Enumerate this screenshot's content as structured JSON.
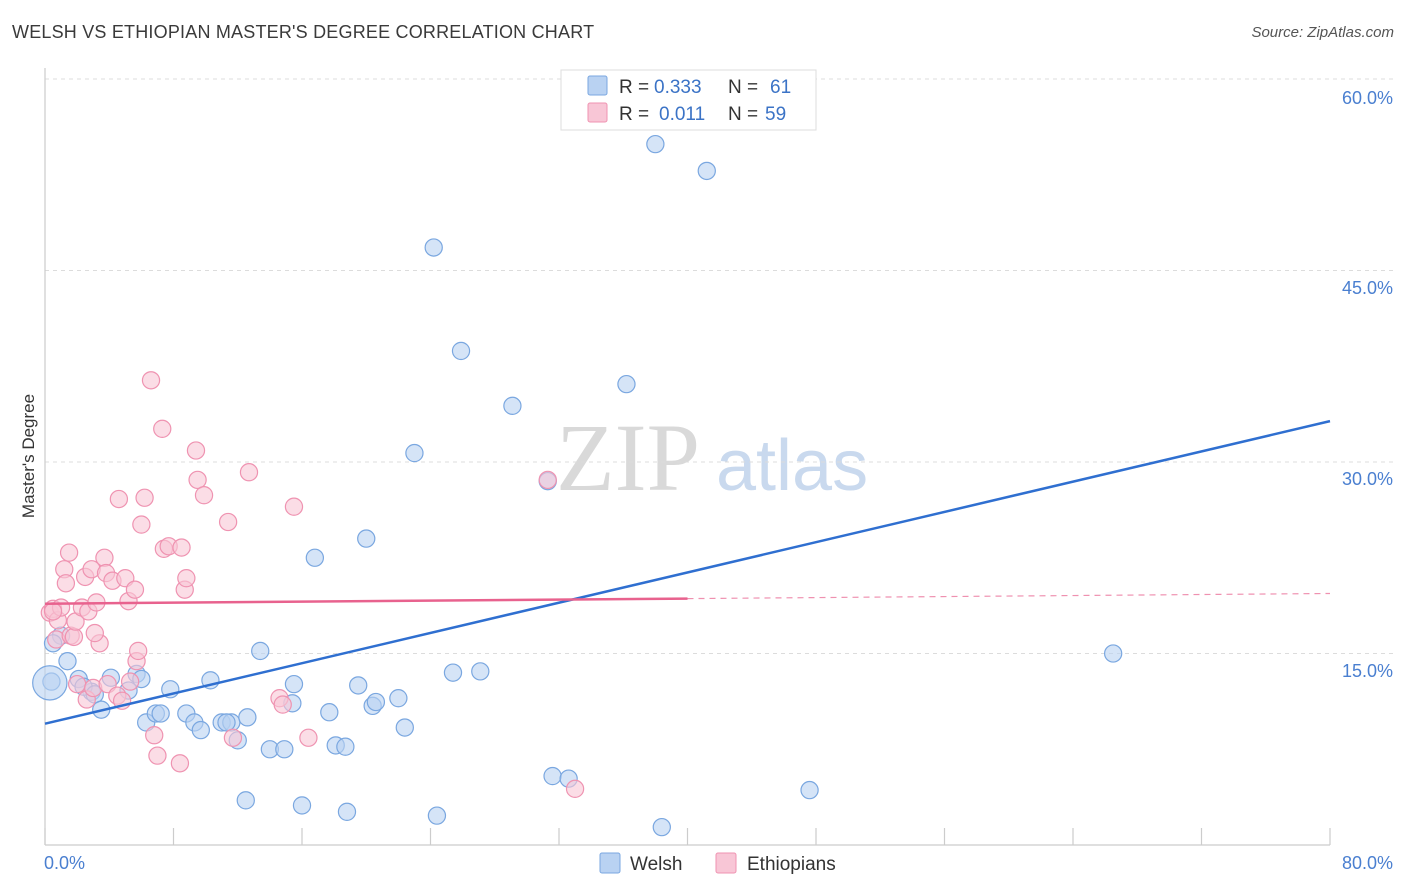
{
  "chart_data": {
    "type": "scatter",
    "title": "WELSH VS ETHIOPIAN MASTER'S DEGREE CORRELATION CHART",
    "source": "Source: ZipAtlas.com",
    "xlabel": "",
    "ylabel": "Master's Degree",
    "xlim": [
      0,
      80
    ],
    "ylim": [
      0,
      60
    ],
    "x_tick_labels": [
      "0.0%",
      "80.0%"
    ],
    "y_ticks": [
      15,
      30,
      45,
      60
    ],
    "y_tick_labels": [
      "15.0%",
      "30.0%",
      "45.0%",
      "60.0%"
    ],
    "watermark": {
      "zip": "ZIP",
      "atlas": "atlas"
    },
    "legend": {
      "r_label": "R =",
      "n_label": "N =",
      "entries": [
        {
          "name": "Welsh",
          "r": "0.333",
          "n": "61",
          "color": "#7baee8"
        },
        {
          "name": "Ethiopians",
          "r": "0.011",
          "n": "59",
          "color": "#f3a0ba"
        }
      ]
    },
    "series": [
      {
        "name": "Welsh",
        "fill": "#b9d2f2",
        "stroke": "#7aa7e0",
        "trend": {
          "x": [
            0,
            80
          ],
          "y": [
            9.5,
            33.2
          ],
          "color": "#2f6fd0"
        },
        "points": [
          [
            0.4,
            12.8
          ],
          [
            1.0,
            16.4
          ],
          [
            0.5,
            15.8
          ],
          [
            1.4,
            14.4
          ],
          [
            2.1,
            13.0
          ],
          [
            2.9,
            12.0
          ],
          [
            2.4,
            12.4
          ],
          [
            3.1,
            11.8
          ],
          [
            3.5,
            10.6
          ],
          [
            4.1,
            13.1
          ],
          [
            5.2,
            12.1
          ],
          [
            5.7,
            13.4
          ],
          [
            6.3,
            9.6
          ],
          [
            6.9,
            10.3
          ],
          [
            7.2,
            10.3
          ],
          [
            7.8,
            12.2
          ],
          [
            8.8,
            10.3
          ],
          [
            9.3,
            9.6
          ],
          [
            9.7,
            9.0
          ],
          [
            10.3,
            12.9
          ],
          [
            11.0,
            9.6
          ],
          [
            11.6,
            9.6
          ],
          [
            12.0,
            8.2
          ],
          [
            12.6,
            10.0
          ],
          [
            13.4,
            15.2
          ],
          [
            14.0,
            7.5
          ],
          [
            14.9,
            7.5
          ],
          [
            15.4,
            11.1
          ],
          [
            15.5,
            12.6
          ],
          [
            16.0,
            3.1
          ],
          [
            16.8,
            22.5
          ],
          [
            17.7,
            10.4
          ],
          [
            18.1,
            7.8
          ],
          [
            18.7,
            7.7
          ],
          [
            18.8,
            2.6
          ],
          [
            19.5,
            12.5
          ],
          [
            20.0,
            24.0
          ],
          [
            20.4,
            10.9
          ],
          [
            20.6,
            11.2
          ],
          [
            22.0,
            11.5
          ],
          [
            22.4,
            9.2
          ],
          [
            23.0,
            30.7
          ],
          [
            24.2,
            46.8
          ],
          [
            24.4,
            2.3
          ],
          [
            25.4,
            13.5
          ],
          [
            25.9,
            38.7
          ],
          [
            27.1,
            13.6
          ],
          [
            29.1,
            34.4
          ],
          [
            31.3,
            28.5
          ],
          [
            31.6,
            5.4
          ],
          [
            32.6,
            5.2
          ],
          [
            36.2,
            36.1
          ],
          [
            38.0,
            54.9
          ],
          [
            38.4,
            1.4
          ],
          [
            41.2,
            52.8
          ],
          [
            47.6,
            4.3
          ],
          [
            66.5,
            15.0
          ],
          [
            0.3,
            12.7
          ],
          [
            12.5,
            3.5
          ],
          [
            6.0,
            13.0
          ],
          [
            11.3,
            9.6
          ]
        ],
        "sizes": [
          12,
          12,
          12,
          12,
          12,
          12,
          12,
          12,
          12,
          12,
          12,
          12,
          12,
          12,
          12,
          12,
          12,
          12,
          12,
          12,
          12,
          12,
          12,
          12,
          12,
          12,
          12,
          12,
          12,
          12,
          12,
          12,
          12,
          12,
          12,
          12,
          12,
          12,
          12,
          12,
          12,
          12,
          12,
          12,
          12,
          12,
          12,
          12,
          12,
          12,
          12,
          12,
          12,
          12,
          12,
          12,
          12,
          24,
          12,
          12,
          12
        ]
      },
      {
        "name": "Ethiopians",
        "fill": "#f8c6d6",
        "stroke": "#ef93b1",
        "trend": {
          "x": [
            0,
            40
          ],
          "y": [
            18.9,
            19.3
          ],
          "x_dash": [
            40,
            80
          ],
          "y_dash": [
            19.3,
            19.7
          ],
          "color": "#e8628e"
        },
        "points": [
          [
            0.3,
            18.2
          ],
          [
            0.5,
            18.5
          ],
          [
            0.7,
            16.1
          ],
          [
            0.8,
            17.6
          ],
          [
            1.0,
            18.6
          ],
          [
            1.2,
            21.6
          ],
          [
            1.3,
            20.5
          ],
          [
            1.5,
            22.9
          ],
          [
            1.6,
            16.4
          ],
          [
            1.8,
            16.3
          ],
          [
            1.9,
            17.5
          ],
          [
            2.0,
            12.6
          ],
          [
            2.3,
            18.6
          ],
          [
            2.5,
            21.0
          ],
          [
            2.6,
            11.4
          ],
          [
            2.7,
            18.3
          ],
          [
            2.9,
            21.6
          ],
          [
            3.0,
            12.3
          ],
          [
            3.2,
            19.0
          ],
          [
            3.4,
            15.8
          ],
          [
            3.7,
            22.5
          ],
          [
            3.8,
            21.3
          ],
          [
            3.9,
            12.6
          ],
          [
            4.2,
            20.7
          ],
          [
            4.5,
            11.7
          ],
          [
            4.6,
            27.1
          ],
          [
            4.8,
            11.3
          ],
          [
            5.0,
            20.9
          ],
          [
            5.2,
            19.1
          ],
          [
            5.3,
            12.8
          ],
          [
            5.6,
            20.0
          ],
          [
            5.7,
            14.4
          ],
          [
            5.8,
            15.2
          ],
          [
            6.0,
            25.1
          ],
          [
            6.2,
            27.2
          ],
          [
            6.6,
            36.4
          ],
          [
            6.8,
            8.6
          ],
          [
            7.0,
            7.0
          ],
          [
            7.3,
            32.6
          ],
          [
            7.4,
            23.2
          ],
          [
            7.7,
            23.4
          ],
          [
            8.4,
            6.4
          ],
          [
            8.5,
            23.3
          ],
          [
            8.7,
            20.0
          ],
          [
            8.8,
            20.9
          ],
          [
            9.4,
            30.9
          ],
          [
            9.5,
            28.6
          ],
          [
            9.9,
            27.4
          ],
          [
            11.4,
            25.3
          ],
          [
            11.7,
            8.4
          ],
          [
            12.7,
            29.2
          ],
          [
            14.6,
            11.5
          ],
          [
            14.8,
            11.0
          ],
          [
            15.5,
            26.5
          ],
          [
            16.4,
            8.4
          ],
          [
            31.3,
            28.6
          ],
          [
            33.0,
            4.4
          ],
          [
            0.5,
            18.3
          ],
          [
            3.1,
            16.6
          ]
        ],
        "sizes": [
          12,
          12,
          12,
          12,
          12,
          12,
          12,
          12,
          12,
          12,
          12,
          12,
          12,
          12,
          12,
          12,
          12,
          12,
          12,
          12,
          12,
          12,
          12,
          12,
          12,
          12,
          12,
          12,
          12,
          12,
          12,
          12,
          12,
          12,
          12,
          12,
          12,
          12,
          12,
          12,
          12,
          12,
          12,
          12,
          12,
          12,
          12,
          12,
          12,
          12,
          12,
          12,
          12,
          12,
          12,
          12,
          12,
          12,
          12
        ]
      }
    ]
  }
}
